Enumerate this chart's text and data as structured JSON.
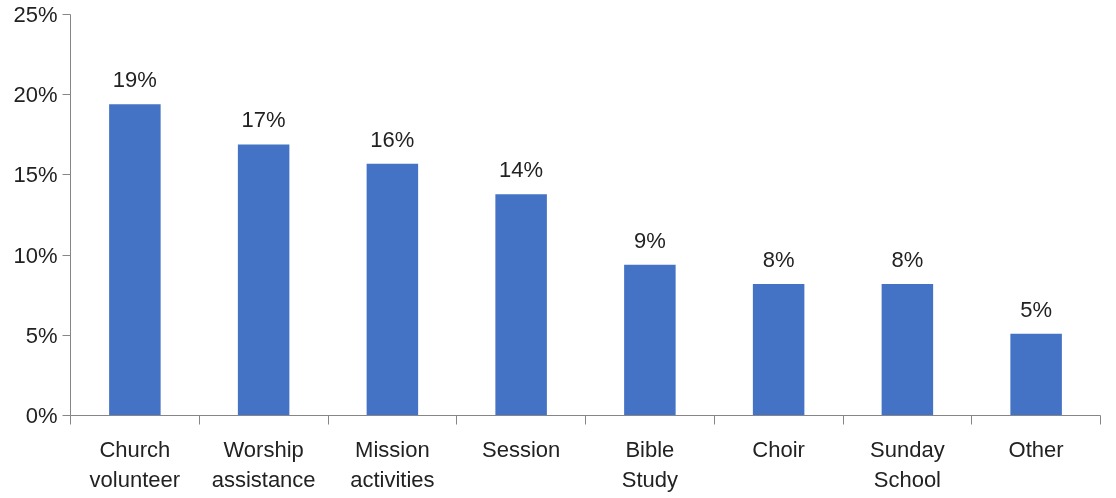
{
  "chart_data": {
    "type": "bar",
    "categories": [
      "Church volunteer",
      "Worship assistance",
      "Mission activities",
      "Session",
      "Bible Study",
      "Choir",
      "Sunday School",
      "Other"
    ],
    "values": [
      19.4,
      16.9,
      15.7,
      13.8,
      9.4,
      8.2,
      8.2,
      5.1
    ],
    "value_labels": [
      "19%",
      "17%",
      "16%",
      "14%",
      "9%",
      "8%",
      "8%",
      "5%"
    ],
    "color": "#4472c4",
    "ylim": [
      0,
      25
    ],
    "yticks": [
      {
        "value": 0,
        "label": "0%"
      },
      {
        "value": 5,
        "label": "5%"
      },
      {
        "value": 10,
        "label": "10%"
      },
      {
        "value": 15,
        "label": "15%"
      },
      {
        "value": 20,
        "label": "20%"
      },
      {
        "value": 25,
        "label": "25%"
      }
    ],
    "grid": false
  }
}
